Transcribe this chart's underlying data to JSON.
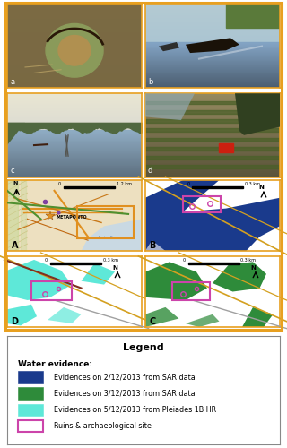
{
  "fig_width": 3.2,
  "fig_height": 5.0,
  "dpi": 100,
  "outer_border_color": "#E8A020",
  "photo_border_color": "#E8A020",
  "map_border_color": "#E8A020",
  "legend_border_color": "#888888",
  "legend_title": "Legend",
  "legend_subtitle": "Water evidence:",
  "legend_items": [
    {
      "color": "#1a3a8c",
      "edge": "#1a3a8c",
      "label": "Evidences on 2/12/2013 from SAR data"
    },
    {
      "color": "#2e8b3a",
      "edge": "#2e8b3a",
      "label": "Evidences on 3/12/2013 from SAR data"
    },
    {
      "color": "#5ee8d8",
      "edge": "#5ee8d8",
      "label": "Evidences on 5/12/2013 from Pleiades 1B HR"
    },
    {
      "color": "none",
      "edge": "#cc44aa",
      "label": "Ruins & archaeological site"
    }
  ],
  "color_sar2": "#1a3a8c",
  "color_sar3": "#2e8b3a",
  "color_plei": "#5ee8d8",
  "color_ruins": "#cc44aa",
  "color_white": "#ffffff",
  "color_road_orange": "#d4a020",
  "color_road_gray": "#a0a0a0",
  "color_road_dark": "#804010"
}
